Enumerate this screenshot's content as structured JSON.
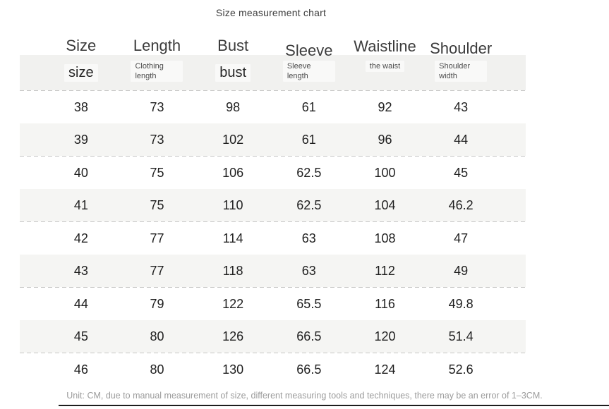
{
  "title": "Size measurement chart",
  "table": {
    "columns": [
      {
        "key": "size",
        "label": "Size",
        "sublabel": "size",
        "sub_style": "large"
      },
      {
        "key": "length",
        "label": "Length",
        "sublabel": "Clothing length",
        "sub_style": "small"
      },
      {
        "key": "bust",
        "label": "Bust",
        "sublabel": "bust",
        "sub_style": "large"
      },
      {
        "key": "sleeve",
        "label": "Sleeve",
        "sublabel": "Sleeve length",
        "sub_style": "small"
      },
      {
        "key": "waistline",
        "label": "Waistline",
        "sublabel": "the waist",
        "sub_style": "small"
      },
      {
        "key": "shoulder",
        "label": "Shoulder",
        "sublabel": "Shoulder width",
        "sub_style": "small"
      }
    ],
    "rows": [
      [
        "38",
        "73",
        "98",
        "61",
        "92",
        "43"
      ],
      [
        "39",
        "73",
        "102",
        "61",
        "96",
        "44"
      ],
      [
        "40",
        "75",
        "106",
        "62.5",
        "100",
        "45"
      ],
      [
        "41",
        "75",
        "110",
        "62.5",
        "104",
        "46.2"
      ],
      [
        "42",
        "77",
        "114",
        "63",
        "108",
        "47"
      ],
      [
        "43",
        "77",
        "118",
        "63",
        "112",
        "49"
      ],
      [
        "44",
        "79",
        "122",
        "65.5",
        "116",
        "49.8"
      ],
      [
        "45",
        "80",
        "126",
        "66.5",
        "120",
        "51.4"
      ],
      [
        "46",
        "80",
        "130",
        "66.5",
        "124",
        "52.6"
      ]
    ]
  },
  "footer": {
    "note": "Unit: CM, due to manual measurement of size, different measuring tools and techniques, there may be an error of 1–3CM."
  },
  "chart_data": {
    "type": "table",
    "title": "Size measurement chart",
    "columns": [
      "Size",
      "Length",
      "Bust",
      "Sleeve",
      "Waistline",
      "Shoulder"
    ],
    "rows": [
      [
        38,
        73,
        98,
        61,
        92,
        43
      ],
      [
        39,
        73,
        102,
        61,
        96,
        44
      ],
      [
        40,
        75,
        106,
        62.5,
        100,
        45
      ],
      [
        41,
        75,
        110,
        62.5,
        104,
        46.2
      ],
      [
        42,
        77,
        114,
        63,
        108,
        47
      ],
      [
        43,
        77,
        118,
        63,
        112,
        49
      ],
      [
        44,
        79,
        122,
        65.5,
        116,
        49.8
      ],
      [
        45,
        80,
        126,
        66.5,
        120,
        51.4
      ],
      [
        46,
        80,
        130,
        66.5,
        124,
        52.6
      ]
    ],
    "footnote": "Unit: CM, due to manual measurement of size, different measuring tools and techniques, there may be an error of 1–3CM."
  },
  "colors": {
    "row_stripe": "#f5f5f3",
    "subheader_band": "#f1f1ef",
    "dashed_divider": "#c7c7c6",
    "footer_text": "#9b9b9b",
    "bottom_rule": "#1d1d1d",
    "text_dark": "#1f1f1f"
  }
}
